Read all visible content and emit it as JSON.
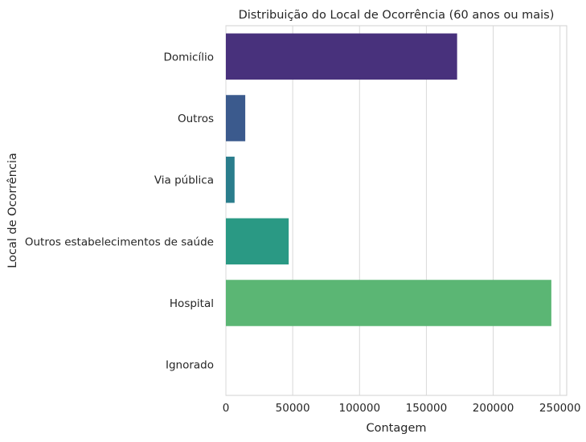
{
  "chart_data": {
    "type": "bar",
    "orientation": "horizontal",
    "title": "Distribuição do Local de Ocorrência (60 anos ou mais)",
    "xlabel": "Contagem",
    "ylabel": "Local de Ocorrência",
    "categories": [
      "Domicílio",
      "Outros",
      "Via pública",
      "Outros estabelecimentos de saúde",
      "Hospital",
      "Ignorado"
    ],
    "values": [
      173000,
      14500,
      6500,
      47000,
      243500,
      0
    ],
    "colors": [
      "#48317c",
      "#3b5a8d",
      "#2a7d8c",
      "#2a9984",
      "#5bb674",
      "#9fd467"
    ],
    "xlim": [
      0,
      255000
    ],
    "xticks": [
      0,
      50000,
      100000,
      150000,
      200000,
      250000
    ],
    "xtick_labels": [
      "0",
      "50000",
      "100000",
      "150000",
      "200000",
      "250000"
    ],
    "grid": "vertical",
    "style": "seaborn-whitegrid",
    "legend": "none"
  }
}
